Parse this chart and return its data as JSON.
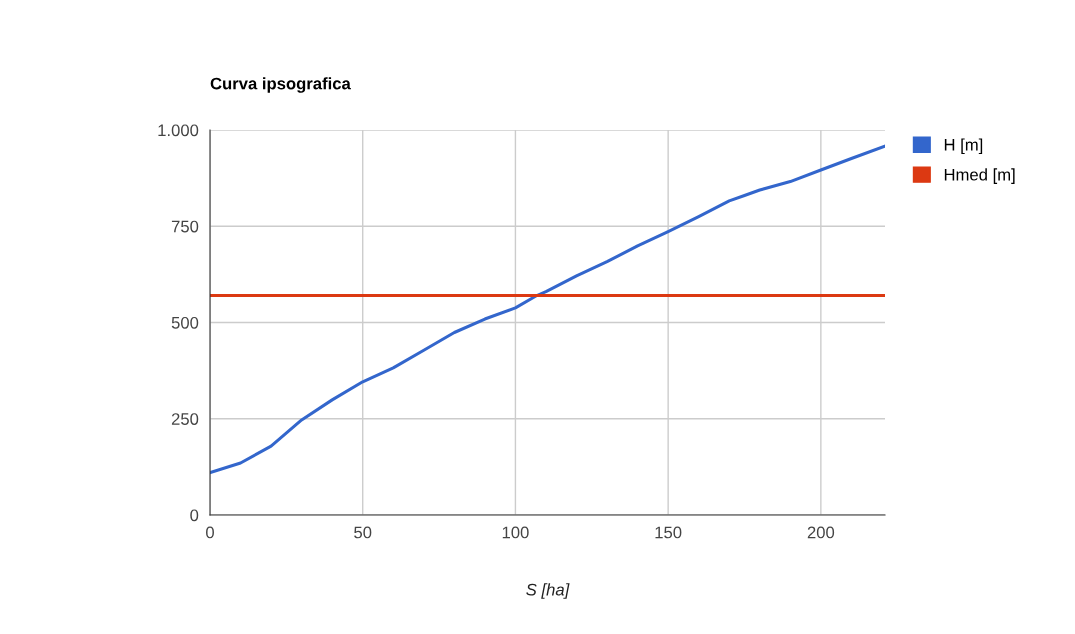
{
  "chart_data": {
    "type": "line",
    "title": "Curva ipsografica",
    "xlabel": "S [ha]",
    "xlim": [
      0,
      221
    ],
    "xticks": [
      0,
      50,
      100,
      150,
      200
    ],
    "ylim": [
      0,
      1000
    ],
    "yticks": [
      0,
      250,
      500,
      750,
      {
        "value": 1000,
        "label": "1.000"
      }
    ],
    "grid": true,
    "legend": "right",
    "marker": "none",
    "line_style": "solid",
    "series": [
      {
        "name": "H [m]",
        "color": "#3366cc",
        "x": [
          0,
          10,
          20,
          30,
          40,
          50,
          60,
          70,
          80,
          90,
          100,
          107,
          110,
          120,
          130,
          140,
          150,
          160,
          170,
          175,
          180,
          190,
          200,
          210,
          221
        ],
        "values": [
          110,
          135,
          179,
          247,
          299,
          346,
          382,
          428,
          474,
          509,
          538,
          570,
          580,
          621,
          658,
          699,
          736,
          775,
          816,
          830,
          844,
          866,
          896,
          926,
          958
        ]
      },
      {
        "name": "Hmed [m]",
        "color": "#dc3912",
        "x": [
          0,
          221
        ],
        "values": [
          570,
          570
        ]
      }
    ]
  }
}
